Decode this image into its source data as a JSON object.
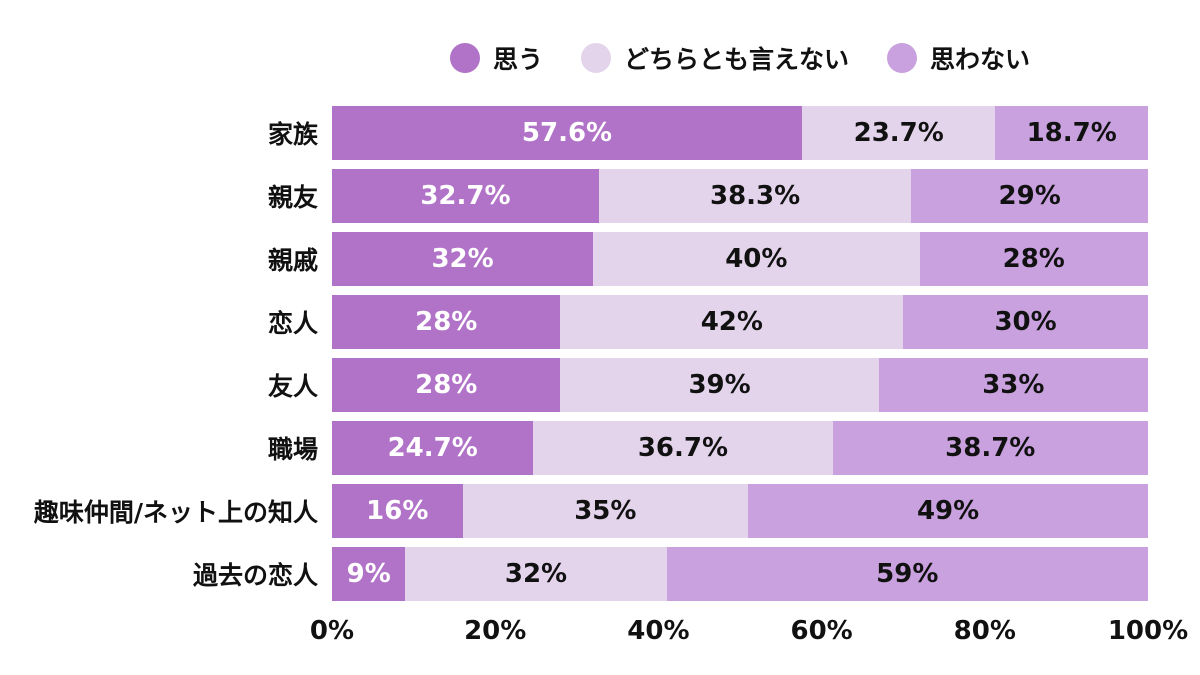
{
  "legend": {
    "items": [
      {
        "label": "思う",
        "color": "#b173c8"
      },
      {
        "label": "どちらとも言えない",
        "color": "#e3d4ec"
      },
      {
        "label": "思わない",
        "color": "#c9a1df"
      }
    ]
  },
  "chart_data": {
    "type": "bar",
    "orientation": "horizontal",
    "stacked": true,
    "title": "",
    "xlabel": "",
    "ylabel": "",
    "xlim": [
      0,
      100
    ],
    "grid": false,
    "legend_position": "top",
    "value_suffix": "%",
    "categories": [
      "家族",
      "親友",
      "親戚",
      "恋人",
      "友人",
      "職場",
      "趣味仲間/ネット上の知人",
      "過去の恋人"
    ],
    "x_ticks": [
      "0%",
      "20%",
      "40%",
      "60%",
      "80%",
      "100%"
    ],
    "series": [
      {
        "name": "思う",
        "color": "#b173c8",
        "label_color": "#ffffff",
        "values": [
          57.6,
          32.7,
          32,
          28,
          28,
          24.7,
          16,
          9
        ],
        "display": [
          "57.6%",
          "32.7%",
          "32%",
          "28%",
          "28%",
          "24.7%",
          "16%",
          "9%"
        ]
      },
      {
        "name": "どちらとも言えない",
        "color": "#e3d4ec",
        "label_color": "#111111",
        "values": [
          23.7,
          38.3,
          40,
          42,
          39,
          36.7,
          35,
          32
        ],
        "display": [
          "23.7%",
          "38.3%",
          "40%",
          "42%",
          "39%",
          "36.7%",
          "35%",
          "32%"
        ]
      },
      {
        "name": "思わない",
        "color": "#c9a1df",
        "label_color": "#111111",
        "values": [
          18.7,
          29,
          28,
          30,
          33,
          38.7,
          49,
          59
        ],
        "display": [
          "18.7%",
          "29%",
          "28%",
          "30%",
          "33%",
          "38.7%",
          "49%",
          "59%"
        ]
      }
    ]
  }
}
